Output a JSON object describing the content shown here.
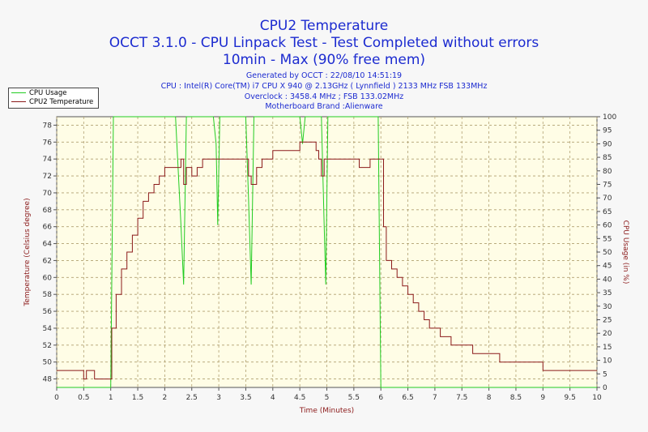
{
  "header": {
    "title": "CPU2 Temperature",
    "subtitle1": "OCCT 3.1.0 - CPU Linpack Test - Test Completed without errors",
    "subtitle2": "10min - Max (90% free mem)",
    "info1": "Generated by OCCT : 22/08/10 14:51:19",
    "info2": "CPU : Intel(R) Core(TM) i7 CPU X 940 @ 2.13GHz ( Lynnfield ) 2133 MHz FSB 133MHz",
    "info3": "Overclock : 3458.4 MHz ; FSB 133.02MHz",
    "info4": "Motherboard Brand :Alienware"
  },
  "colors": {
    "cpu_usage": "#22cc22",
    "temperature": "#8b1a1a",
    "title": "#1c2bd0",
    "plot_bg": "#fffde6",
    "grid": "#b0a070"
  },
  "chart_data": {
    "type": "line",
    "title": "CPU2 Temperature",
    "xlabel": "Time (Minutes)",
    "ylabel_left": "Temperature (Celsius degree)",
    "ylabel_right": "CPU Usage (in %)",
    "xlim": [
      0,
      10
    ],
    "ylim_left": [
      47,
      79
    ],
    "ylim_right": [
      0,
      100
    ],
    "x_ticks": [
      "0",
      "0.5",
      "1",
      "1.5",
      "2",
      "2.5",
      "3",
      "3.5",
      "4",
      "4.5",
      "5",
      "5.5",
      "6",
      "6.5",
      "7",
      "7.5",
      "8",
      "8.5",
      "9",
      "9.5",
      "10"
    ],
    "y_left_ticks": [
      "48",
      "50",
      "52",
      "54",
      "56",
      "58",
      "60",
      "62",
      "64",
      "66",
      "68",
      "70",
      "72",
      "74",
      "76",
      "78"
    ],
    "y_right_ticks": [
      "0",
      "5",
      "10",
      "15",
      "20",
      "25",
      "30",
      "35",
      "40",
      "45",
      "50",
      "55",
      "60",
      "65",
      "70",
      "75",
      "80",
      "85",
      "90",
      "95",
      "100"
    ],
    "grid": true,
    "legend_position": "top-left",
    "series": [
      {
        "name": "CPU Usage",
        "axis": "right",
        "points": [
          [
            0,
            0
          ],
          [
            1.0,
            0
          ],
          [
            1.05,
            100
          ],
          [
            2.2,
            100
          ],
          [
            2.3,
            60
          ],
          [
            2.35,
            38
          ],
          [
            2.4,
            100
          ],
          [
            2.9,
            100
          ],
          [
            2.95,
            90
          ],
          [
            2.98,
            60
          ],
          [
            3.02,
            100
          ],
          [
            3.5,
            100
          ],
          [
            3.55,
            70
          ],
          [
            3.6,
            38
          ],
          [
            3.65,
            100
          ],
          [
            4.5,
            100
          ],
          [
            4.55,
            90
          ],
          [
            4.6,
            100
          ],
          [
            4.9,
            100
          ],
          [
            4.95,
            60
          ],
          [
            4.98,
            38
          ],
          [
            5.02,
            100
          ],
          [
            5.95,
            100
          ],
          [
            6.0,
            0
          ],
          [
            10,
            0
          ]
        ]
      },
      {
        "name": "CPU2 Temperature",
        "axis": "left",
        "points": [
          [
            0,
            49
          ],
          [
            0.45,
            49
          ],
          [
            0.5,
            48
          ],
          [
            0.55,
            49
          ],
          [
            0.7,
            48
          ],
          [
            0.9,
            48
          ],
          [
            0.97,
            48
          ],
          [
            1.0,
            48
          ],
          [
            1.02,
            54
          ],
          [
            1.1,
            58
          ],
          [
            1.2,
            61
          ],
          [
            1.3,
            63
          ],
          [
            1.4,
            65
          ],
          [
            1.5,
            67
          ],
          [
            1.6,
            69
          ],
          [
            1.7,
            70
          ],
          [
            1.8,
            71
          ],
          [
            1.9,
            72
          ],
          [
            2.0,
            73
          ],
          [
            2.2,
            73
          ],
          [
            2.3,
            74
          ],
          [
            2.35,
            71
          ],
          [
            2.4,
            73
          ],
          [
            2.5,
            72
          ],
          [
            2.6,
            73
          ],
          [
            2.7,
            74
          ],
          [
            2.9,
            74
          ],
          [
            3.0,
            74
          ],
          [
            3.5,
            74
          ],
          [
            3.55,
            72
          ],
          [
            3.6,
            71
          ],
          [
            3.7,
            73
          ],
          [
            3.8,
            74
          ],
          [
            4.0,
            75
          ],
          [
            4.3,
            75
          ],
          [
            4.5,
            76
          ],
          [
            4.7,
            76
          ],
          [
            4.8,
            75
          ],
          [
            4.85,
            74
          ],
          [
            4.9,
            72
          ],
          [
            4.95,
            74
          ],
          [
            5.0,
            74
          ],
          [
            5.5,
            74
          ],
          [
            5.6,
            73
          ],
          [
            5.8,
            74
          ],
          [
            6.0,
            74
          ],
          [
            6.05,
            66
          ],
          [
            6.1,
            62
          ],
          [
            6.2,
            61
          ],
          [
            6.3,
            60
          ],
          [
            6.4,
            59
          ],
          [
            6.5,
            58
          ],
          [
            6.6,
            57
          ],
          [
            6.7,
            56
          ],
          [
            6.8,
            55
          ],
          [
            6.9,
            54
          ],
          [
            7.0,
            54
          ],
          [
            7.1,
            53
          ],
          [
            7.2,
            53
          ],
          [
            7.3,
            52
          ],
          [
            7.5,
            52
          ],
          [
            7.7,
            51
          ],
          [
            8.0,
            51
          ],
          [
            8.2,
            50
          ],
          [
            8.5,
            50
          ],
          [
            8.8,
            50
          ],
          [
            9.0,
            49
          ],
          [
            9.5,
            49
          ],
          [
            10,
            49
          ]
        ]
      }
    ]
  }
}
